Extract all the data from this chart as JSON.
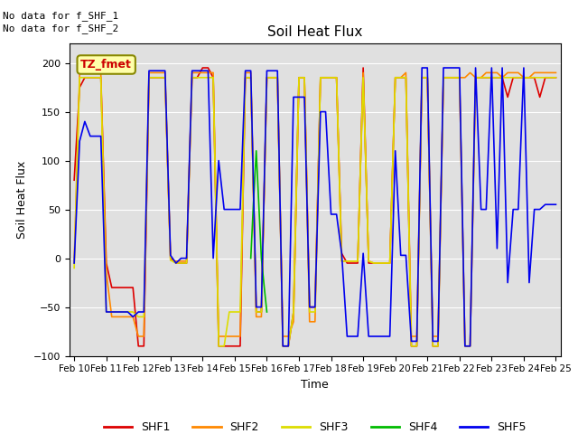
{
  "title": "Soil Heat Flux",
  "ylabel": "Soil Heat Flux",
  "xlabel": "Time",
  "ylim": [
    -100,
    220
  ],
  "yticks": [
    -100,
    -50,
    0,
    50,
    100,
    150,
    200
  ],
  "annotation_line1": "No data for f_SHF_1",
  "annotation_line2": "No data for f_SHF_2",
  "tz_label": "TZ_fmet",
  "background_color": "#e0e0e0",
  "series": {
    "SHF1": {
      "color": "#dd0000",
      "lw": 1.2,
      "x": [
        10.0,
        10.17,
        10.33,
        10.5,
        10.67,
        10.83,
        11.0,
        11.17,
        11.33,
        11.5,
        11.67,
        11.83,
        12.0,
        12.17,
        12.33,
        12.5,
        12.67,
        12.83,
        13.0,
        13.17,
        13.33,
        13.5,
        13.67,
        13.83,
        14.0,
        14.17,
        14.33,
        14.5,
        14.67,
        14.83,
        15.0,
        15.17,
        15.33,
        15.5,
        15.67,
        15.83,
        16.0,
        16.17,
        16.33,
        16.5,
        16.67,
        16.83,
        17.0,
        17.17,
        17.33,
        17.5,
        17.67,
        17.83,
        18.0,
        18.17,
        18.33,
        18.5,
        18.67,
        18.83,
        19.0,
        19.17,
        19.33,
        19.5,
        19.67,
        19.83,
        20.0,
        20.17,
        20.33,
        20.5,
        20.67,
        20.83,
        21.0,
        21.17,
        21.33,
        21.5,
        21.67,
        21.83,
        22.0,
        22.17,
        22.33,
        22.5,
        22.67,
        22.83,
        23.0,
        23.17,
        23.33,
        23.5,
        23.67,
        23.83,
        24.0,
        24.17,
        24.33,
        24.5,
        24.67,
        24.83,
        25.0
      ],
      "y": [
        80,
        175,
        185,
        185,
        185,
        185,
        -5,
        -30,
        -30,
        -30,
        -30,
        -30,
        -90,
        -90,
        185,
        185,
        185,
        185,
        0,
        -5,
        -5,
        -5,
        185,
        185,
        195,
        195,
        185,
        -90,
        -90,
        -90,
        -90,
        -90,
        185,
        185,
        -55,
        -55,
        185,
        185,
        185,
        -90,
        -90,
        -55,
        185,
        185,
        -50,
        -50,
        185,
        185,
        185,
        185,
        5,
        -5,
        -5,
        -5,
        195,
        -5,
        -5,
        -5,
        -5,
        -5,
        185,
        185,
        185,
        -90,
        -90,
        185,
        185,
        -90,
        -90,
        185,
        185,
        185,
        185,
        -90,
        -90,
        185,
        185,
        185,
        185,
        185,
        185,
        165,
        185,
        185,
        185,
        185,
        185,
        165,
        185,
        185,
        185
      ]
    },
    "SHF2": {
      "color": "#ff8800",
      "lw": 1.2,
      "x": [
        10.0,
        10.17,
        10.33,
        10.5,
        10.67,
        10.83,
        11.0,
        11.17,
        11.33,
        11.5,
        11.67,
        11.83,
        12.0,
        12.17,
        12.33,
        12.5,
        12.67,
        12.83,
        13.0,
        13.17,
        13.33,
        13.5,
        13.67,
        13.83,
        14.0,
        14.17,
        14.33,
        14.5,
        14.67,
        14.83,
        15.0,
        15.17,
        15.33,
        15.5,
        15.67,
        15.83,
        16.0,
        16.17,
        16.33,
        16.5,
        16.67,
        16.83,
        17.0,
        17.17,
        17.33,
        17.5,
        17.67,
        17.83,
        18.0,
        18.17,
        18.33,
        18.5,
        18.67,
        18.83,
        19.0,
        19.17,
        19.33,
        19.5,
        19.67,
        19.83,
        20.0,
        20.17,
        20.33,
        20.5,
        20.67,
        20.83,
        21.0,
        21.17,
        21.33,
        21.5,
        21.67,
        21.83,
        22.0,
        22.17,
        22.33,
        22.5,
        22.67,
        22.83,
        23.0,
        23.17,
        23.33,
        23.5,
        23.67,
        23.83,
        24.0,
        24.17,
        24.33,
        24.5,
        24.67,
        24.83,
        25.0
      ],
      "y": [
        -5,
        190,
        190,
        190,
        190,
        190,
        -15,
        -60,
        -60,
        -60,
        -60,
        -60,
        -80,
        -80,
        190,
        190,
        190,
        190,
        -2,
        -3,
        -3,
        -3,
        190,
        190,
        190,
        190,
        190,
        -80,
        -80,
        -80,
        -80,
        -80,
        190,
        190,
        -60,
        -60,
        185,
        185,
        185,
        -80,
        -80,
        -65,
        185,
        185,
        -65,
        -65,
        185,
        185,
        185,
        185,
        -3,
        -3,
        -3,
        -3,
        190,
        -3,
        -5,
        -5,
        -5,
        -5,
        185,
        185,
        190,
        -80,
        -80,
        185,
        185,
        -80,
        -80,
        185,
        185,
        185,
        185,
        185,
        190,
        185,
        185,
        190,
        190,
        190,
        185,
        190,
        190,
        190,
        185,
        185,
        190,
        190,
        190,
        190,
        190
      ]
    },
    "SHF3": {
      "color": "#dddd00",
      "lw": 1.2,
      "x": [
        10.0,
        10.17,
        10.33,
        10.5,
        10.67,
        10.83,
        11.0,
        11.17,
        11.33,
        11.5,
        11.67,
        11.83,
        12.0,
        12.17,
        12.33,
        12.5,
        12.67,
        12.83,
        13.0,
        13.17,
        13.33,
        13.5,
        13.67,
        13.83,
        14.0,
        14.17,
        14.33,
        14.5,
        14.67,
        14.83,
        15.0,
        15.17,
        15.33,
        15.5,
        15.67,
        15.83,
        16.0,
        16.17,
        16.33,
        16.5,
        16.67,
        16.83,
        17.0,
        17.17,
        17.33,
        17.5,
        17.67,
        17.83,
        18.0,
        18.17,
        18.33,
        18.5,
        18.67,
        18.83,
        19.0,
        19.17,
        19.33,
        19.5,
        19.67,
        19.83,
        20.0,
        20.17,
        20.33,
        20.5,
        20.67,
        20.83,
        21.0,
        21.17,
        21.33,
        21.5,
        21.67,
        21.83,
        22.0,
        22.17,
        22.33,
        22.5,
        22.67,
        22.83,
        23.0,
        23.17,
        23.33,
        23.5,
        23.67,
        23.83,
        24.0,
        24.17,
        24.33,
        24.5,
        24.67,
        24.83,
        25.0
      ],
      "y": [
        -10,
        185,
        185,
        185,
        185,
        185,
        -55,
        -55,
        -55,
        -55,
        -55,
        -55,
        -60,
        -60,
        185,
        185,
        185,
        185,
        -2,
        -5,
        -5,
        -5,
        185,
        185,
        185,
        185,
        185,
        -90,
        -90,
        -55,
        -55,
        -55,
        185,
        185,
        -55,
        -55,
        185,
        185,
        185,
        -90,
        -90,
        -55,
        185,
        185,
        -55,
        -55,
        185,
        185,
        185,
        185,
        -3,
        -3,
        -3,
        -3,
        185,
        -3,
        -5,
        -5,
        -5,
        -5,
        185,
        185,
        185,
        -90,
        -90,
        185,
        185,
        -90,
        -90,
        185,
        185,
        185,
        185,
        -90,
        -90,
        185,
        185,
        185,
        185,
        185,
        185,
        185,
        185,
        185,
        185,
        185,
        185,
        185,
        185,
        185,
        185
      ]
    },
    "SHF4": {
      "color": "#00bb00",
      "lw": 1.2,
      "x": [
        15.5,
        15.58,
        15.67,
        15.75,
        15.83,
        15.92,
        16.0
      ],
      "y": [
        0,
        55,
        110,
        55,
        0,
        -30,
        -55
      ]
    },
    "SHF5": {
      "color": "#0000ee",
      "lw": 1.2,
      "x": [
        10.0,
        10.17,
        10.33,
        10.5,
        10.67,
        10.83,
        11.0,
        11.17,
        11.33,
        11.5,
        11.67,
        11.83,
        12.0,
        12.17,
        12.33,
        12.5,
        12.67,
        12.83,
        13.0,
        13.17,
        13.33,
        13.5,
        13.67,
        13.83,
        14.0,
        14.17,
        14.33,
        14.5,
        14.67,
        14.83,
        15.0,
        15.17,
        15.33,
        15.5,
        15.67,
        15.83,
        16.0,
        16.17,
        16.33,
        16.5,
        16.67,
        16.83,
        17.0,
        17.17,
        17.33,
        17.5,
        17.67,
        17.83,
        18.0,
        18.17,
        18.33,
        18.5,
        18.67,
        18.83,
        19.0,
        19.17,
        19.33,
        19.5,
        19.67,
        19.83,
        20.0,
        20.17,
        20.33,
        20.5,
        20.67,
        20.83,
        21.0,
        21.17,
        21.33,
        21.5,
        21.67,
        21.83,
        22.0,
        22.17,
        22.33,
        22.5,
        22.67,
        22.83,
        23.0,
        23.17,
        23.33,
        23.5,
        23.67,
        23.83,
        24.0,
        24.17,
        24.33,
        24.5,
        24.67,
        24.83,
        25.0
      ],
      "y": [
        -5,
        120,
        140,
        125,
        125,
        125,
        -55,
        -55,
        -55,
        -55,
        -55,
        -60,
        -55,
        -55,
        192,
        192,
        192,
        192,
        3,
        -5,
        0,
        0,
        192,
        192,
        192,
        192,
        0,
        100,
        50,
        50,
        50,
        50,
        192,
        192,
        -50,
        -50,
        192,
        192,
        192,
        -90,
        -90,
        165,
        165,
        165,
        -50,
        -50,
        150,
        150,
        45,
        45,
        5,
        -80,
        -80,
        -80,
        5,
        -80,
        -80,
        -80,
        -80,
        -80,
        110,
        3,
        3,
        -85,
        -85,
        195,
        195,
        -85,
        -85,
        195,
        195,
        195,
        195,
        -90,
        -90,
        195,
        50,
        50,
        195,
        10,
        195,
        -25,
        50,
        50,
        195,
        -25,
        50,
        50,
        55,
        55,
        55
      ]
    }
  },
  "xtick_positions": [
    10,
    11,
    12,
    13,
    14,
    15,
    16,
    17,
    18,
    19,
    20,
    21,
    22,
    23,
    24,
    25
  ],
  "xtick_labels": [
    "Feb 10",
    "Feb 11",
    "Feb 12",
    "Feb 13",
    "Feb 14",
    "Feb 15",
    "Feb 16",
    "Feb 17",
    "Feb 18",
    "Feb 19",
    "Feb 20",
    "Feb 21",
    "Feb 22",
    "Feb 23",
    "Feb 24",
    "Feb 25"
  ],
  "xlim": [
    9.85,
    25.15
  ],
  "legend_entries": [
    "SHF1",
    "SHF2",
    "SHF3",
    "SHF4",
    "SHF5"
  ],
  "legend_colors": [
    "#dd0000",
    "#ff8800",
    "#dddd00",
    "#00bb00",
    "#0000ee"
  ]
}
